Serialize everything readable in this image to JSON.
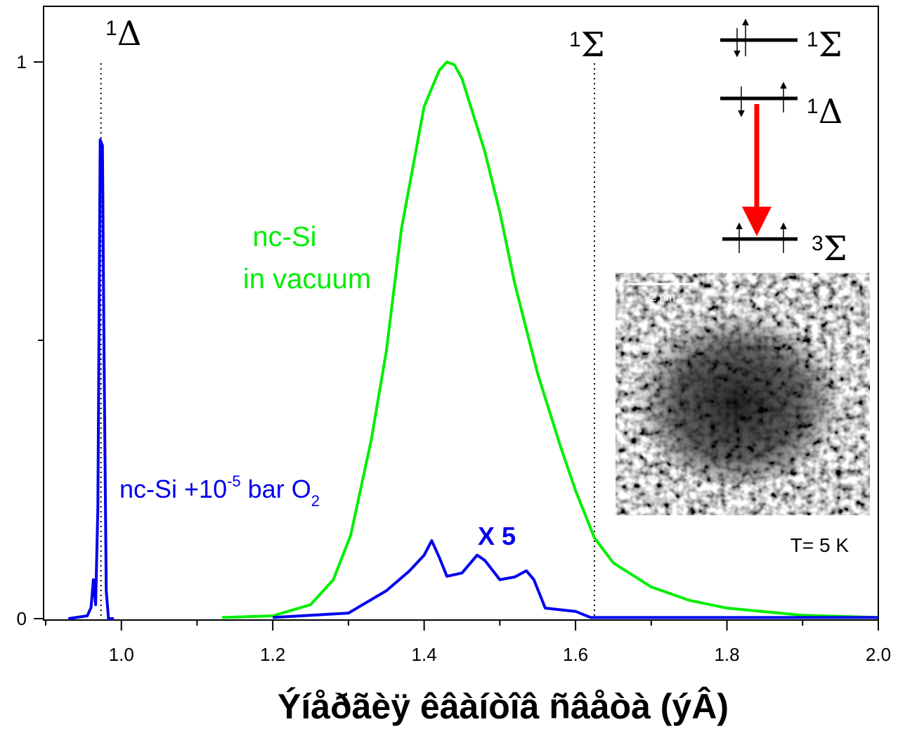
{
  "chart_data": {
    "type": "line",
    "xlabel": "Ýíåðãèÿ êâàíòîâ ñâåòà (ýÂ)",
    "xlim": [
      0.9,
      2.0
    ],
    "ylim": [
      0,
      1.1
    ],
    "xticks": [
      {
        "value": 1.0,
        "label": "1.0"
      },
      1.2,
      1.4,
      1.6,
      1.8,
      {
        "value": 2.0,
        "label": "2.0"
      }
    ],
    "xminor_ticks": [
      0.9,
      1.1,
      1.3,
      1.5,
      1.7,
      1.9
    ],
    "yticks": [
      0,
      1
    ],
    "yminor_ticks": [
      0.5
    ],
    "vlines": [
      0.973,
      1.625
    ],
    "series": [
      {
        "name": "nc-Si in vacuum",
        "color": "#00ee00",
        "x": [
          1.133,
          1.2,
          1.25,
          1.28,
          1.303,
          1.33,
          1.35,
          1.37,
          1.4,
          1.42,
          1.43,
          1.44,
          1.45,
          1.48,
          1.5,
          1.52,
          1.55,
          1.58,
          1.6,
          1.625,
          1.65,
          1.7,
          1.75,
          1.8,
          1.9,
          2.0
        ],
        "values": [
          0.002,
          0.005,
          0.025,
          0.07,
          0.15,
          0.32,
          0.48,
          0.7,
          0.92,
          0.985,
          1.0,
          0.995,
          0.97,
          0.84,
          0.73,
          0.6,
          0.44,
          0.31,
          0.23,
          0.145,
          0.1,
          0.057,
          0.033,
          0.019,
          0.006,
          0.002
        ]
      },
      {
        "name": "nc-Si +10-5 bar O2",
        "color": "#0000ee",
        "x": [
          0.93,
          0.955,
          0.96,
          0.963,
          0.966,
          0.969,
          0.972,
          0.975,
          0.977,
          0.98,
          0.983,
          0.99,
          1.1,
          1.2,
          1.3,
          1.35,
          1.38,
          1.4,
          1.41,
          1.42,
          1.43,
          1.45,
          1.47,
          1.48,
          1.5,
          1.52,
          1.535,
          1.545,
          1.56,
          1.6,
          1.62,
          2.0
        ],
        "values": [
          0,
          0.005,
          0.02,
          0.07,
          0.025,
          0.2,
          0.86,
          0.85,
          0.5,
          0.05,
          0.0,
          0.0,
          null,
          0.002,
          0.01,
          0.05,
          0.085,
          0.114,
          0.14,
          0.11,
          0.076,
          0.082,
          0.114,
          0.105,
          0.07,
          0.075,
          0.086,
          0.07,
          0.019,
          0.013,
          0.002,
          0.002
        ]
      }
    ],
    "annotations": {
      "delta": {
        "sup": "1",
        "text": "Δ"
      },
      "sigma": {
        "sup": "1",
        "text": "Σ"
      },
      "vacuum": [
        "nc-Si",
        "in vacuum"
      ],
      "oxygen": [
        "nc-Si +10",
        "-5",
        " bar O",
        "2"
      ],
      "scale": "X 5",
      "temperature": "T= 5 K",
      "scalebar": "2 nm",
      "levels": [
        {
          "sup": "1",
          "text": "Σ"
        },
        {
          "sup": "1",
          "text": "Δ"
        },
        {
          "sup": "3",
          "text": "Σ"
        }
      ]
    }
  }
}
